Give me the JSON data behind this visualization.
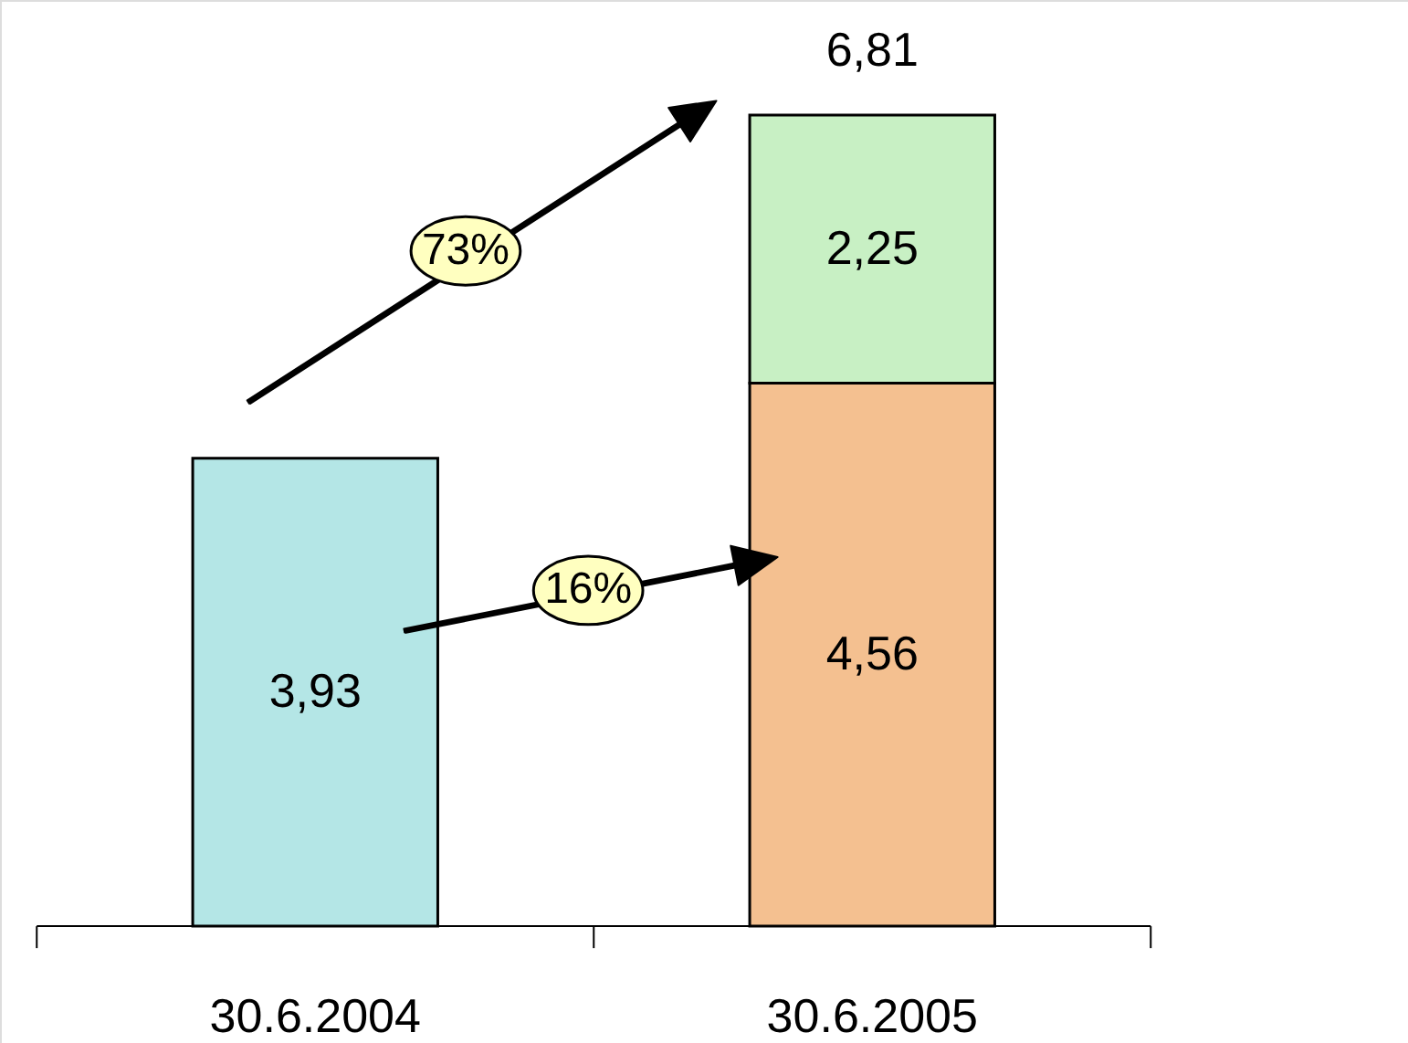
{
  "chart_data": {
    "type": "bar",
    "stacked": true,
    "categories": [
      "30.6.2004",
      "30.6.2005"
    ],
    "series": [
      {
        "colors": [
          "#b4e6e6",
          "#f4c090"
        ],
        "values": [
          3.93,
          4.56
        ],
        "value_labels": [
          "3,93",
          "4,56"
        ]
      },
      {
        "color": "#c8f0c4",
        "values": [
          null,
          2.25
        ],
        "value_labels": [
          null,
          "2,25"
        ]
      }
    ],
    "totals": [
      null,
      "6,81"
    ],
    "annotations": [
      "73%",
      "16%"
    ]
  }
}
